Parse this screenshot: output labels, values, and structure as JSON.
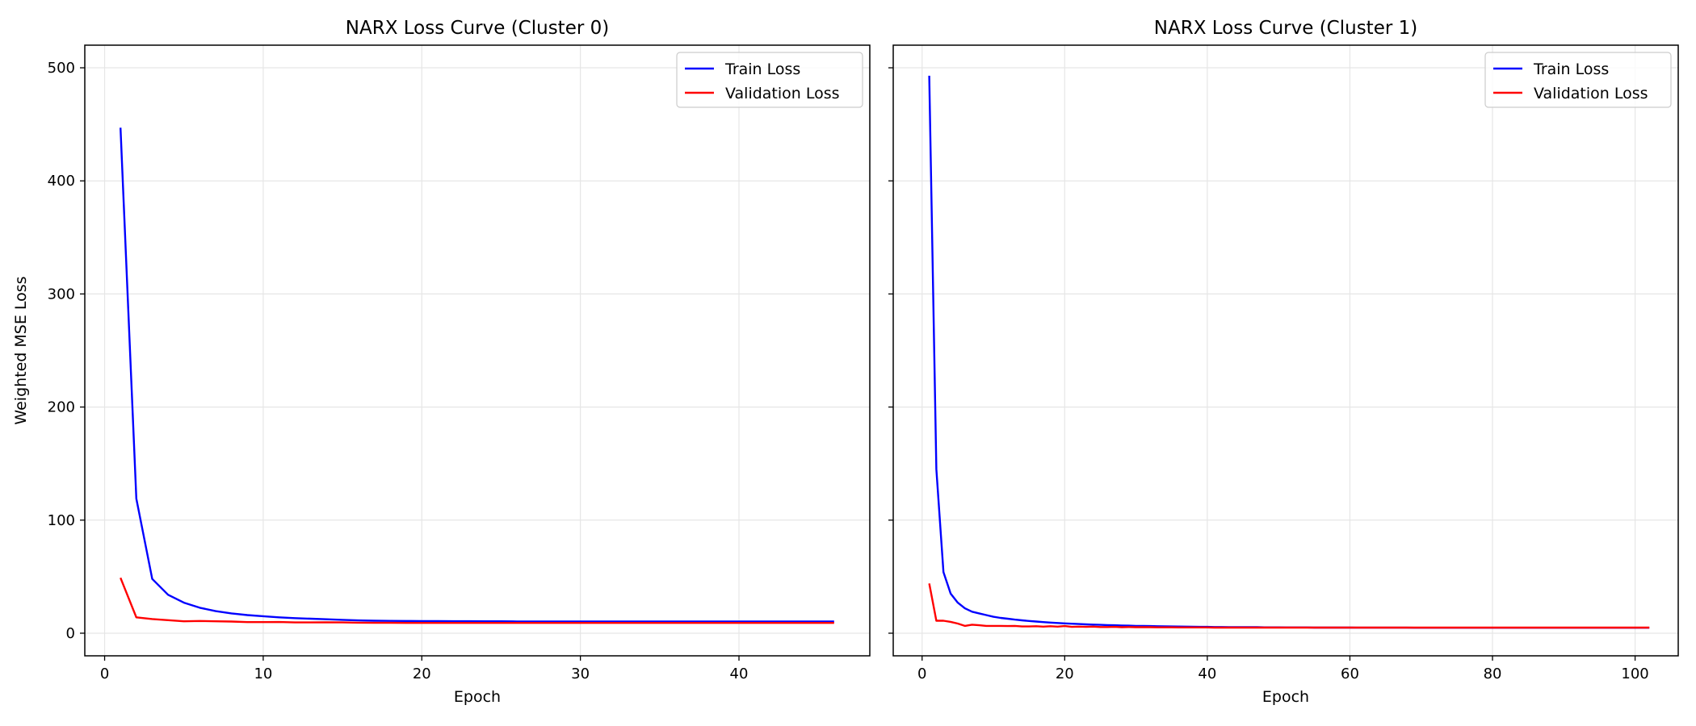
{
  "chart_data": [
    {
      "type": "line",
      "title": "NARX Loss Curve (Cluster 0)",
      "xlabel": "Epoch",
      "ylabel": "Weighted MSE Loss",
      "xlim": [
        -1.25,
        48.25
      ],
      "ylim": [
        -20,
        520
      ],
      "xticks": [
        0,
        10,
        20,
        30,
        40
      ],
      "yticks": [
        0,
        100,
        200,
        300,
        400,
        500
      ],
      "grid": true,
      "legend": "top-right",
      "x": [
        1,
        2,
        3,
        4,
        5,
        6,
        7,
        8,
        9,
        10,
        11,
        12,
        13,
        14,
        15,
        16,
        17,
        18,
        19,
        20,
        21,
        22,
        23,
        24,
        25,
        26,
        27,
        28,
        29,
        30,
        31,
        32,
        33,
        34,
        35,
        36,
        37,
        38,
        39,
        40,
        41,
        42,
        43,
        44,
        45,
        46
      ],
      "series": [
        {
          "name": "Train Loss",
          "color": "#0000ff",
          "values": [
            447,
            119,
            48,
            34,
            27,
            22.5,
            19.5,
            17.5,
            16,
            15,
            14,
            13.3,
            12.8,
            12.3,
            11.8,
            11.3,
            11,
            10.9,
            10.8,
            10.7,
            10.7,
            10.6,
            10.6,
            10.5,
            10.5,
            10.4,
            10.4,
            10.4,
            10.3,
            10.3,
            10.3,
            10.3,
            10.3,
            10.3,
            10.3,
            10.3,
            10.3,
            10.3,
            10.3,
            10.3,
            10.3,
            10.3,
            10.3,
            10.3,
            10.3,
            10.3
          ]
        },
        {
          "name": "Validation Loss",
          "color": "#ff0000",
          "values": [
            49,
            14,
            12.5,
            11.5,
            10.5,
            10.8,
            10.5,
            10.3,
            9.8,
            9.8,
            9.9,
            9.5,
            9.5,
            9.6,
            9.5,
            9.3,
            9.2,
            9.2,
            9.1,
            9.1,
            9.1,
            9.1,
            9.1,
            9.1,
            9.1,
            9.1,
            9.1,
            9.1,
            9.1,
            9.1,
            9.1,
            9.1,
            9.1,
            9.1,
            9.1,
            9.1,
            9.1,
            9.1,
            9.1,
            9.1,
            9.1,
            9.1,
            9.1,
            9.1,
            9.1,
            9.1
          ]
        }
      ]
    },
    {
      "type": "line",
      "title": "NARX Loss Curve (Cluster 1)",
      "xlabel": "Epoch",
      "ylabel": "",
      "xlim": [
        -4.05,
        106.05
      ],
      "ylim": [
        -20,
        520
      ],
      "xticks": [
        0,
        20,
        40,
        60,
        80,
        100
      ],
      "yticks": [
        0,
        100,
        200,
        300,
        400,
        500
      ],
      "show_ytick_labels": false,
      "grid": true,
      "legend": "top-right",
      "x": [
        1,
        2,
        3,
        4,
        5,
        6,
        7,
        8,
        9,
        10,
        11,
        12,
        13,
        14,
        15,
        16,
        17,
        18,
        19,
        20,
        21,
        22,
        23,
        24,
        25,
        26,
        27,
        28,
        29,
        30,
        31,
        32,
        33,
        34,
        35,
        36,
        37,
        38,
        39,
        40,
        41,
        42,
        43,
        44,
        45,
        46,
        47,
        48,
        49,
        50,
        51,
        52,
        53,
        54,
        55,
        56,
        57,
        58,
        59,
        60,
        61,
        62,
        63,
        64,
        65,
        66,
        67,
        68,
        69,
        70,
        71,
        72,
        73,
        74,
        75,
        76,
        77,
        78,
        79,
        80,
        81,
        82,
        83,
        84,
        85,
        86,
        87,
        88,
        89,
        90,
        91,
        92,
        93,
        94,
        95,
        96,
        97,
        98,
        99,
        100,
        101,
        102
      ],
      "series": [
        {
          "name": "Train Loss",
          "color": "#0000ff",
          "values": [
            493,
            145,
            54,
            35,
            27,
            22,
            19,
            17.5,
            16,
            14.5,
            13.5,
            12.8,
            12,
            11.4,
            10.8,
            10.3,
            9.8,
            9.4,
            9,
            8.7,
            8.4,
            8.1,
            7.8,
            7.6,
            7.4,
            7.2,
            7,
            6.8,
            6.7,
            6.5,
            6.4,
            6.3,
            6.2,
            6.1,
            6,
            5.9,
            5.8,
            5.7,
            5.6,
            5.6,
            5.5,
            5.5,
            5.4,
            5.4,
            5.3,
            5.3,
            5.3,
            5.2,
            5.2,
            5.2,
            5.1,
            5.1,
            5.1,
            5.1,
            5,
            5,
            5,
            5,
            5,
            5,
            4.9,
            4.9,
            4.9,
            4.9,
            4.9,
            4.9,
            4.9,
            4.9,
            4.8,
            4.8,
            4.8,
            4.8,
            4.8,
            4.8,
            4.8,
            4.8,
            4.8,
            4.8,
            4.8,
            4.8,
            4.8,
            4.8,
            4.8,
            4.8,
            4.8,
            4.8,
            4.8,
            4.8,
            4.8,
            4.8,
            4.8,
            4.8,
            4.8,
            4.8,
            4.8,
            4.8,
            4.8,
            4.8,
            4.8,
            4.8,
            4.8,
            4.8
          ]
        },
        {
          "name": "Validation Loss",
          "color": "#ff0000",
          "values": [
            44,
            11,
            11,
            10,
            8.5,
            6.5,
            7.5,
            7,
            6.5,
            6.5,
            6.5,
            6.3,
            6.5,
            6,
            6,
            6.2,
            5.8,
            6.2,
            5.8,
            6.3,
            5.6,
            5.8,
            5.6,
            5.8,
            5.5,
            5.5,
            5.6,
            5.3,
            5.5,
            5.3,
            5.3,
            5.3,
            5.2,
            5.2,
            5.2,
            5.1,
            5.1,
            5.1,
            5.1,
            5.1,
            5,
            5,
            5,
            5,
            5,
            5,
            5,
            5,
            5,
            5,
            5,
            5,
            5,
            5,
            5,
            5,
            5,
            5,
            5,
            5,
            5,
            5,
            5,
            5,
            5,
            5,
            5,
            5,
            5,
            5,
            5,
            5,
            5,
            5,
            5,
            5,
            5,
            5,
            5,
            5,
            5,
            5,
            5,
            5,
            5,
            5,
            5,
            5,
            5,
            5,
            5,
            5,
            5,
            5,
            5,
            5,
            5,
            5,
            5,
            5,
            5,
            5
          ]
        }
      ]
    }
  ]
}
